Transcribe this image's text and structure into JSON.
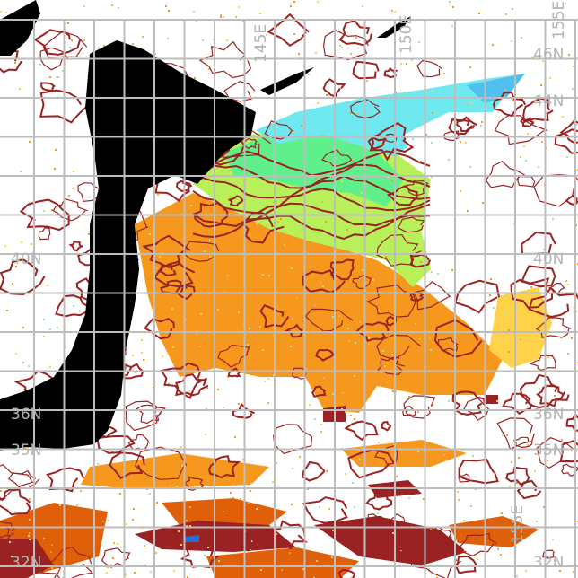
{
  "map": {
    "latitude_labels_right": [
      "46N",
      "44N",
      "40N",
      "36N",
      "35N",
      "32N"
    ],
    "latitude_labels_left": [
      "40N",
      "36N",
      "35N",
      "32N"
    ],
    "longitude_labels_top": [
      "145E",
      "150E",
      "155E"
    ],
    "longitude_labels_bottom": [
      "155E"
    ],
    "colors": {
      "land": "#000000",
      "no_data": "#ffffff",
      "grid": "#bdbdbd",
      "contour": "#9b2222",
      "warm_orange": "#f7981e",
      "dark_orange": "#e0600a",
      "yellow": "#ffd24a",
      "yellow_green": "#b8f05a",
      "green": "#5ff08c",
      "cyan": "#6fe8f0",
      "sky_blue": "#4fc0f0",
      "blue": "#1e6fe0"
    }
  }
}
